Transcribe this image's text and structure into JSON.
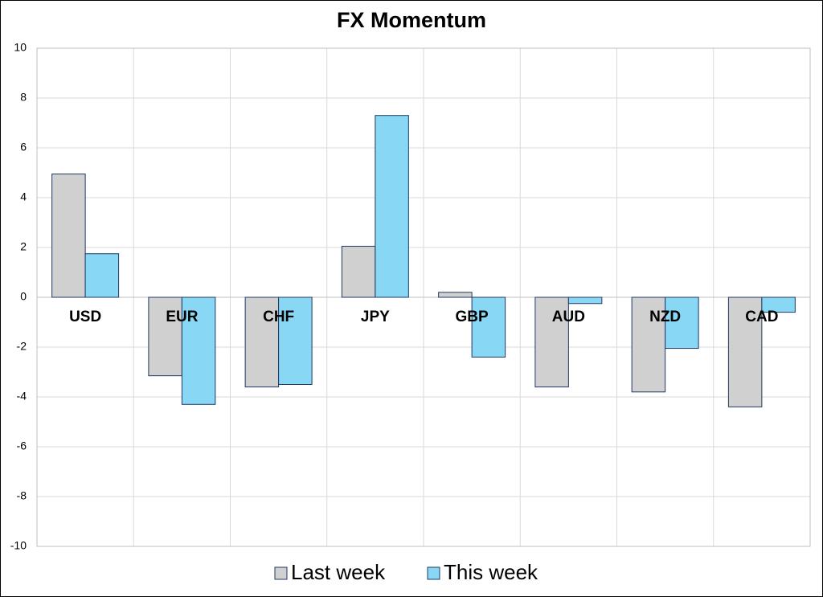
{
  "chart_data": {
    "type": "bar",
    "title": "FX Momentum",
    "categories": [
      "USD",
      "EUR",
      "CHF",
      "JPY",
      "GBP",
      "AUD",
      "NZD",
      "CAD"
    ],
    "series": [
      {
        "name": "Last week",
        "color": "#d0d0d0",
        "values": [
          4.95,
          -3.15,
          -3.6,
          2.05,
          0.2,
          -3.6,
          -3.8,
          -4.4
        ]
      },
      {
        "name": "This week",
        "color": "#87d7f5",
        "values": [
          1.75,
          -4.3,
          -3.5,
          7.3,
          -2.4,
          -0.25,
          -2.05,
          -0.6
        ]
      }
    ],
    "ylim": [
      -10,
      10
    ],
    "yticks": [
      -10,
      -8,
      -6,
      -4,
      -2,
      0,
      2,
      4,
      6,
      8,
      10
    ],
    "grid": true
  }
}
